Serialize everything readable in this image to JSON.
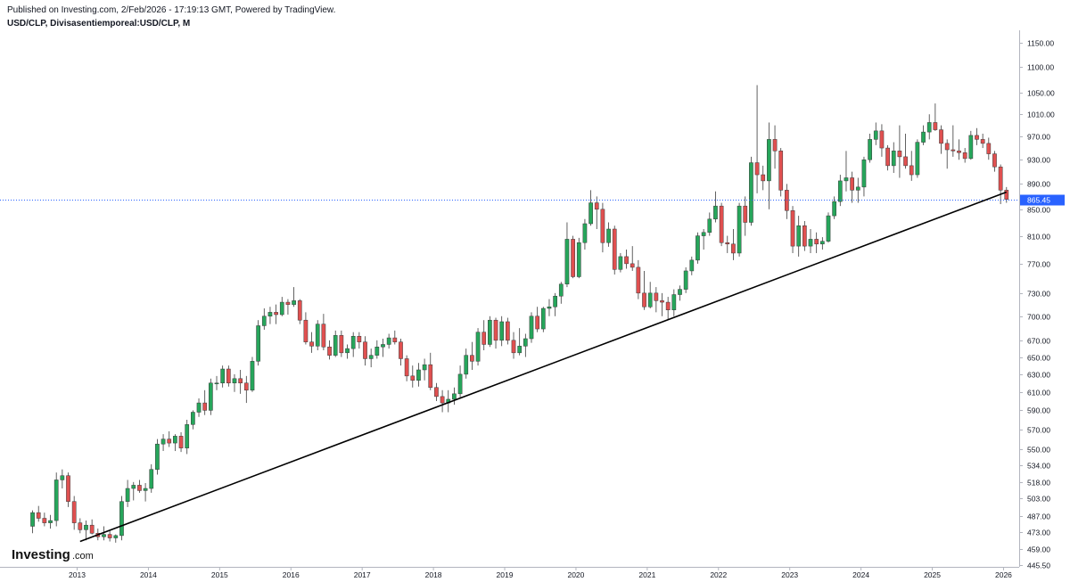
{
  "header": {
    "published": "Published on Investing.com, 2/Feb/2026 - 17:19:13 GMT, Powered by TradingView.",
    "symbol": "USD/CLP, Divisasentiemporeal:USD/CLP, M"
  },
  "logo": {
    "main": "Investing",
    "sub": ".com"
  },
  "colors": {
    "up": "#26a65b",
    "down": "#e05050",
    "price_line": "#2962ff",
    "trendline": "#000000",
    "price_label_bg": "#2962ff"
  },
  "chart_data": {
    "type": "candlestick",
    "interval": "monthly",
    "price_scale": "log",
    "current_price": "865.45",
    "y_ticks": [
      "1150.00",
      "1100.00",
      "1050.00",
      "1010.00",
      "970.00",
      "930.00",
      "890.00",
      "850.00",
      "810.00",
      "770.00",
      "730.00",
      "700.00",
      "670.00",
      "650.00",
      "630.00",
      "610.00",
      "590.00",
      "570.00",
      "550.00",
      "534.00",
      "518.00",
      "503.00",
      "487.00",
      "473.00",
      "459.00",
      "445.50"
    ],
    "x_ticks": [
      "2013",
      "2014",
      "2015",
      "2016",
      "2017",
      "2018",
      "2019",
      "2020",
      "2021",
      "2022",
      "2023",
      "2024",
      "2025",
      "2026"
    ],
    "trendline": {
      "from": {
        "date": "2013-01",
        "price": 465
      },
      "to": {
        "date": "2026-01",
        "price": 877
      }
    },
    "ohlc": [
      {
        "d": "2012-05",
        "o": 478,
        "h": 492,
        "l": 472,
        "c": 490
      },
      {
        "d": "2012-06",
        "o": 490,
        "h": 496,
        "l": 482,
        "c": 485
      },
      {
        "d": "2012-07",
        "o": 485,
        "h": 490,
        "l": 478,
        "c": 481
      },
      {
        "d": "2012-08",
        "o": 481,
        "h": 488,
        "l": 476,
        "c": 483
      },
      {
        "d": "2012-09",
        "o": 483,
        "h": 527,
        "l": 478,
        "c": 520
      },
      {
        "d": "2012-10",
        "o": 520,
        "h": 530,
        "l": 512,
        "c": 524
      },
      {
        "d": "2012-11",
        "o": 524,
        "h": 527,
        "l": 495,
        "c": 500
      },
      {
        "d": "2012-12",
        "o": 500,
        "h": 505,
        "l": 475,
        "c": 481
      },
      {
        "d": "2013-01",
        "o": 481,
        "h": 485,
        "l": 472,
        "c": 475
      },
      {
        "d": "2013-02",
        "o": 475,
        "h": 483,
        "l": 466,
        "c": 479
      },
      {
        "d": "2013-03",
        "o": 479,
        "h": 484,
        "l": 471,
        "c": 472
      },
      {
        "d": "2013-04",
        "o": 472,
        "h": 476,
        "l": 466,
        "c": 469
      },
      {
        "d": "2013-05",
        "o": 469,
        "h": 478,
        "l": 466,
        "c": 471
      },
      {
        "d": "2013-06",
        "o": 471,
        "h": 474,
        "l": 465,
        "c": 468
      },
      {
        "d": "2013-07",
        "o": 468,
        "h": 471,
        "l": 464,
        "c": 470
      },
      {
        "d": "2013-08",
        "o": 470,
        "h": 505,
        "l": 466,
        "c": 500
      },
      {
        "d": "2013-09",
        "o": 500,
        "h": 520,
        "l": 495,
        "c": 512
      },
      {
        "d": "2013-10",
        "o": 512,
        "h": 518,
        "l": 501,
        "c": 515
      },
      {
        "d": "2013-11",
        "o": 515,
        "h": 520,
        "l": 508,
        "c": 510
      },
      {
        "d": "2013-12",
        "o": 510,
        "h": 517,
        "l": 500,
        "c": 512
      },
      {
        "d": "2014-01",
        "o": 512,
        "h": 535,
        "l": 508,
        "c": 530
      },
      {
        "d": "2014-02",
        "o": 530,
        "h": 560,
        "l": 525,
        "c": 555
      },
      {
        "d": "2014-03",
        "o": 555,
        "h": 565,
        "l": 548,
        "c": 560
      },
      {
        "d": "2014-04",
        "o": 560,
        "h": 568,
        "l": 552,
        "c": 556
      },
      {
        "d": "2014-05",
        "o": 556,
        "h": 565,
        "l": 548,
        "c": 563
      },
      {
        "d": "2014-06",
        "o": 563,
        "h": 567,
        "l": 547,
        "c": 551
      },
      {
        "d": "2014-07",
        "o": 551,
        "h": 580,
        "l": 545,
        "c": 575
      },
      {
        "d": "2014-08",
        "o": 575,
        "h": 590,
        "l": 570,
        "c": 588
      },
      {
        "d": "2014-09",
        "o": 588,
        "h": 603,
        "l": 583,
        "c": 598
      },
      {
        "d": "2014-10",
        "o": 598,
        "h": 612,
        "l": 585,
        "c": 590
      },
      {
        "d": "2014-11",
        "o": 590,
        "h": 625,
        "l": 585,
        "c": 620
      },
      {
        "d": "2014-12",
        "o": 620,
        "h": 628,
        "l": 612,
        "c": 620
      },
      {
        "d": "2015-01",
        "o": 620,
        "h": 640,
        "l": 615,
        "c": 636
      },
      {
        "d": "2015-02",
        "o": 636,
        "h": 640,
        "l": 616,
        "c": 620
      },
      {
        "d": "2015-03",
        "o": 620,
        "h": 630,
        "l": 610,
        "c": 625
      },
      {
        "d": "2015-04",
        "o": 625,
        "h": 635,
        "l": 608,
        "c": 620
      },
      {
        "d": "2015-05",
        "o": 620,
        "h": 628,
        "l": 598,
        "c": 612
      },
      {
        "d": "2015-06",
        "o": 612,
        "h": 650,
        "l": 610,
        "c": 645
      },
      {
        "d": "2015-07",
        "o": 645,
        "h": 695,
        "l": 640,
        "c": 688
      },
      {
        "d": "2015-08",
        "o": 688,
        "h": 710,
        "l": 683,
        "c": 700
      },
      {
        "d": "2015-09",
        "o": 700,
        "h": 712,
        "l": 690,
        "c": 705
      },
      {
        "d": "2015-10",
        "o": 705,
        "h": 715,
        "l": 690,
        "c": 702
      },
      {
        "d": "2015-11",
        "o": 702,
        "h": 725,
        "l": 700,
        "c": 718
      },
      {
        "d": "2015-12",
        "o": 718,
        "h": 722,
        "l": 702,
        "c": 715
      },
      {
        "d": "2016-01",
        "o": 715,
        "h": 738,
        "l": 712,
        "c": 720
      },
      {
        "d": "2016-02",
        "o": 720,
        "h": 722,
        "l": 690,
        "c": 695
      },
      {
        "d": "2016-03",
        "o": 695,
        "h": 705,
        "l": 665,
        "c": 668
      },
      {
        "d": "2016-04",
        "o": 668,
        "h": 680,
        "l": 655,
        "c": 663
      },
      {
        "d": "2016-05",
        "o": 663,
        "h": 695,
        "l": 658,
        "c": 690
      },
      {
        "d": "2016-06",
        "o": 690,
        "h": 703,
        "l": 658,
        "c": 662
      },
      {
        "d": "2016-07",
        "o": 662,
        "h": 670,
        "l": 647,
        "c": 652
      },
      {
        "d": "2016-08",
        "o": 652,
        "h": 682,
        "l": 650,
        "c": 676
      },
      {
        "d": "2016-09",
        "o": 676,
        "h": 682,
        "l": 650,
        "c": 655
      },
      {
        "d": "2016-10",
        "o": 655,
        "h": 665,
        "l": 648,
        "c": 660
      },
      {
        "d": "2016-11",
        "o": 660,
        "h": 680,
        "l": 650,
        "c": 675
      },
      {
        "d": "2016-12",
        "o": 675,
        "h": 680,
        "l": 660,
        "c": 668
      },
      {
        "d": "2017-01",
        "o": 668,
        "h": 675,
        "l": 640,
        "c": 648
      },
      {
        "d": "2017-02",
        "o": 648,
        "h": 660,
        "l": 638,
        "c": 652
      },
      {
        "d": "2017-03",
        "o": 652,
        "h": 670,
        "l": 648,
        "c": 662
      },
      {
        "d": "2017-04",
        "o": 662,
        "h": 672,
        "l": 650,
        "c": 665
      },
      {
        "d": "2017-05",
        "o": 665,
        "h": 678,
        "l": 660,
        "c": 673
      },
      {
        "d": "2017-06",
        "o": 673,
        "h": 682,
        "l": 665,
        "c": 668
      },
      {
        "d": "2017-07",
        "o": 668,
        "h": 672,
        "l": 640,
        "c": 648
      },
      {
        "d": "2017-08",
        "o": 648,
        "h": 652,
        "l": 622,
        "c": 628
      },
      {
        "d": "2017-09",
        "o": 628,
        "h": 640,
        "l": 615,
        "c": 623
      },
      {
        "d": "2017-10",
        "o": 623,
        "h": 643,
        "l": 616,
        "c": 635
      },
      {
        "d": "2017-11",
        "o": 635,
        "h": 648,
        "l": 623,
        "c": 641
      },
      {
        "d": "2017-12",
        "o": 641,
        "h": 655,
        "l": 612,
        "c": 615
      },
      {
        "d": "2018-01",
        "o": 615,
        "h": 620,
        "l": 600,
        "c": 605
      },
      {
        "d": "2018-02",
        "o": 605,
        "h": 612,
        "l": 588,
        "c": 598
      },
      {
        "d": "2018-03",
        "o": 598,
        "h": 612,
        "l": 588,
        "c": 602
      },
      {
        "d": "2018-04",
        "o": 602,
        "h": 615,
        "l": 596,
        "c": 608
      },
      {
        "d": "2018-05",
        "o": 608,
        "h": 640,
        "l": 604,
        "c": 630
      },
      {
        "d": "2018-06",
        "o": 630,
        "h": 660,
        "l": 625,
        "c": 652
      },
      {
        "d": "2018-07",
        "o": 652,
        "h": 668,
        "l": 635,
        "c": 645
      },
      {
        "d": "2018-08",
        "o": 645,
        "h": 685,
        "l": 640,
        "c": 680
      },
      {
        "d": "2018-09",
        "o": 680,
        "h": 695,
        "l": 658,
        "c": 665
      },
      {
        "d": "2018-10",
        "o": 665,
        "h": 700,
        "l": 662,
        "c": 695
      },
      {
        "d": "2018-11",
        "o": 695,
        "h": 698,
        "l": 660,
        "c": 670
      },
      {
        "d": "2018-12",
        "o": 670,
        "h": 700,
        "l": 663,
        "c": 693
      },
      {
        "d": "2019-01",
        "o": 693,
        "h": 698,
        "l": 665,
        "c": 670
      },
      {
        "d": "2019-02",
        "o": 670,
        "h": 680,
        "l": 648,
        "c": 655
      },
      {
        "d": "2019-03",
        "o": 655,
        "h": 685,
        "l": 652,
        "c": 663
      },
      {
        "d": "2019-04",
        "o": 663,
        "h": 678,
        "l": 650,
        "c": 672
      },
      {
        "d": "2019-05",
        "o": 672,
        "h": 705,
        "l": 667,
        "c": 700
      },
      {
        "d": "2019-06",
        "o": 700,
        "h": 712,
        "l": 680,
        "c": 684
      },
      {
        "d": "2019-07",
        "o": 684,
        "h": 712,
        "l": 680,
        "c": 710
      },
      {
        "d": "2019-08",
        "o": 710,
        "h": 722,
        "l": 700,
        "c": 712
      },
      {
        "d": "2019-09",
        "o": 712,
        "h": 730,
        "l": 700,
        "c": 726
      },
      {
        "d": "2019-10",
        "o": 726,
        "h": 745,
        "l": 716,
        "c": 742
      },
      {
        "d": "2019-11",
        "o": 742,
        "h": 830,
        "l": 738,
        "c": 805
      },
      {
        "d": "2019-12",
        "o": 805,
        "h": 810,
        "l": 750,
        "c": 752
      },
      {
        "d": "2020-01",
        "o": 752,
        "h": 807,
        "l": 750,
        "c": 800
      },
      {
        "d": "2020-02",
        "o": 800,
        "h": 835,
        "l": 790,
        "c": 828
      },
      {
        "d": "2020-03",
        "o": 828,
        "h": 880,
        "l": 825,
        "c": 860
      },
      {
        "d": "2020-04",
        "o": 860,
        "h": 870,
        "l": 820,
        "c": 850
      },
      {
        "d": "2020-05",
        "o": 850,
        "h": 860,
        "l": 786,
        "c": 800
      },
      {
        "d": "2020-06",
        "o": 800,
        "h": 830,
        "l": 794,
        "c": 820
      },
      {
        "d": "2020-07",
        "o": 820,
        "h": 825,
        "l": 755,
        "c": 762
      },
      {
        "d": "2020-08",
        "o": 762,
        "h": 785,
        "l": 758,
        "c": 780
      },
      {
        "d": "2020-09",
        "o": 780,
        "h": 790,
        "l": 763,
        "c": 770
      },
      {
        "d": "2020-10",
        "o": 770,
        "h": 795,
        "l": 760,
        "c": 765
      },
      {
        "d": "2020-11",
        "o": 765,
        "h": 775,
        "l": 722,
        "c": 730
      },
      {
        "d": "2020-12",
        "o": 730,
        "h": 760,
        "l": 708,
        "c": 712
      },
      {
        "d": "2021-01",
        "o": 712,
        "h": 745,
        "l": 710,
        "c": 730
      },
      {
        "d": "2021-02",
        "o": 730,
        "h": 738,
        "l": 705,
        "c": 720
      },
      {
        "d": "2021-03",
        "o": 720,
        "h": 730,
        "l": 700,
        "c": 718
      },
      {
        "d": "2021-04",
        "o": 718,
        "h": 725,
        "l": 695,
        "c": 708
      },
      {
        "d": "2021-05",
        "o": 708,
        "h": 735,
        "l": 700,
        "c": 728
      },
      {
        "d": "2021-06",
        "o": 728,
        "h": 740,
        "l": 720,
        "c": 735
      },
      {
        "d": "2021-07",
        "o": 735,
        "h": 765,
        "l": 730,
        "c": 760
      },
      {
        "d": "2021-08",
        "o": 760,
        "h": 780,
        "l": 754,
        "c": 775
      },
      {
        "d": "2021-09",
        "o": 775,
        "h": 815,
        "l": 770,
        "c": 810
      },
      {
        "d": "2021-10",
        "o": 810,
        "h": 820,
        "l": 790,
        "c": 815
      },
      {
        "d": "2021-11",
        "o": 815,
        "h": 845,
        "l": 810,
        "c": 835
      },
      {
        "d": "2021-12",
        "o": 835,
        "h": 878,
        "l": 830,
        "c": 855
      },
      {
        "d": "2022-01",
        "o": 855,
        "h": 860,
        "l": 795,
        "c": 800
      },
      {
        "d": "2022-02",
        "o": 800,
        "h": 810,
        "l": 785,
        "c": 798
      },
      {
        "d": "2022-03",
        "o": 798,
        "h": 820,
        "l": 775,
        "c": 785
      },
      {
        "d": "2022-04",
        "o": 785,
        "h": 860,
        "l": 780,
        "c": 855
      },
      {
        "d": "2022-05",
        "o": 855,
        "h": 870,
        "l": 810,
        "c": 830
      },
      {
        "d": "2022-06",
        "o": 830,
        "h": 935,
        "l": 825,
        "c": 925
      },
      {
        "d": "2022-07",
        "o": 925,
        "h": 1065,
        "l": 875,
        "c": 905
      },
      {
        "d": "2022-08",
        "o": 905,
        "h": 920,
        "l": 880,
        "c": 895
      },
      {
        "d": "2022-09",
        "o": 895,
        "h": 995,
        "l": 850,
        "c": 965
      },
      {
        "d": "2022-10",
        "o": 965,
        "h": 990,
        "l": 915,
        "c": 945
      },
      {
        "d": "2022-11",
        "o": 945,
        "h": 950,
        "l": 870,
        "c": 880
      },
      {
        "d": "2022-12",
        "o": 880,
        "h": 890,
        "l": 835,
        "c": 848
      },
      {
        "d": "2023-01",
        "o": 848,
        "h": 855,
        "l": 785,
        "c": 795
      },
      {
        "d": "2023-02",
        "o": 795,
        "h": 840,
        "l": 780,
        "c": 825
      },
      {
        "d": "2023-03",
        "o": 825,
        "h": 832,
        "l": 788,
        "c": 795
      },
      {
        "d": "2023-04",
        "o": 795,
        "h": 820,
        "l": 785,
        "c": 805
      },
      {
        "d": "2023-05",
        "o": 805,
        "h": 815,
        "l": 785,
        "c": 798
      },
      {
        "d": "2023-06",
        "o": 798,
        "h": 808,
        "l": 790,
        "c": 802
      },
      {
        "d": "2023-07",
        "o": 802,
        "h": 845,
        "l": 800,
        "c": 840
      },
      {
        "d": "2023-08",
        "o": 840,
        "h": 870,
        "l": 835,
        "c": 862
      },
      {
        "d": "2023-09",
        "o": 862,
        "h": 905,
        "l": 855,
        "c": 895
      },
      {
        "d": "2023-10",
        "o": 895,
        "h": 945,
        "l": 878,
        "c": 900
      },
      {
        "d": "2023-11",
        "o": 900,
        "h": 910,
        "l": 860,
        "c": 880
      },
      {
        "d": "2023-12",
        "o": 880,
        "h": 900,
        "l": 860,
        "c": 885
      },
      {
        "d": "2024-01",
        "o": 885,
        "h": 935,
        "l": 870,
        "c": 930
      },
      {
        "d": "2024-02",
        "o": 930,
        "h": 975,
        "l": 925,
        "c": 965
      },
      {
        "d": "2024-03",
        "o": 965,
        "h": 995,
        "l": 955,
        "c": 980
      },
      {
        "d": "2024-04",
        "o": 980,
        "h": 992,
        "l": 935,
        "c": 950
      },
      {
        "d": "2024-05",
        "o": 950,
        "h": 955,
        "l": 912,
        "c": 920
      },
      {
        "d": "2024-06",
        "o": 920,
        "h": 960,
        "l": 908,
        "c": 945
      },
      {
        "d": "2024-07",
        "o": 945,
        "h": 990,
        "l": 900,
        "c": 935
      },
      {
        "d": "2024-08",
        "o": 935,
        "h": 975,
        "l": 915,
        "c": 920
      },
      {
        "d": "2024-09",
        "o": 920,
        "h": 945,
        "l": 895,
        "c": 905
      },
      {
        "d": "2024-10",
        "o": 905,
        "h": 965,
        "l": 900,
        "c": 960
      },
      {
        "d": "2024-11",
        "o": 960,
        "h": 990,
        "l": 955,
        "c": 978
      },
      {
        "d": "2024-12",
        "o": 978,
        "h": 1010,
        "l": 965,
        "c": 995
      },
      {
        "d": "2025-01",
        "o": 995,
        "h": 1030,
        "l": 980,
        "c": 982
      },
      {
        "d": "2025-02",
        "o": 982,
        "h": 990,
        "l": 940,
        "c": 958
      },
      {
        "d": "2025-03",
        "o": 958,
        "h": 965,
        "l": 915,
        "c": 947
      },
      {
        "d": "2025-04",
        "o": 947,
        "h": 990,
        "l": 935,
        "c": 945
      },
      {
        "d": "2025-05",
        "o": 945,
        "h": 965,
        "l": 930,
        "c": 942
      },
      {
        "d": "2025-06",
        "o": 942,
        "h": 950,
        "l": 925,
        "c": 932
      },
      {
        "d": "2025-07",
        "o": 932,
        "h": 980,
        "l": 930,
        "c": 972
      },
      {
        "d": "2025-08",
        "o": 972,
        "h": 985,
        "l": 955,
        "c": 965
      },
      {
        "d": "2025-09",
        "o": 965,
        "h": 975,
        "l": 950,
        "c": 958
      },
      {
        "d": "2025-10",
        "o": 958,
        "h": 968,
        "l": 930,
        "c": 940
      },
      {
        "d": "2025-11",
        "o": 940,
        "h": 945,
        "l": 910,
        "c": 918
      },
      {
        "d": "2025-12",
        "o": 918,
        "h": 922,
        "l": 858,
        "c": 880
      },
      {
        "d": "2026-01",
        "o": 880,
        "h": 885,
        "l": 860,
        "c": 865.45
      }
    ]
  }
}
